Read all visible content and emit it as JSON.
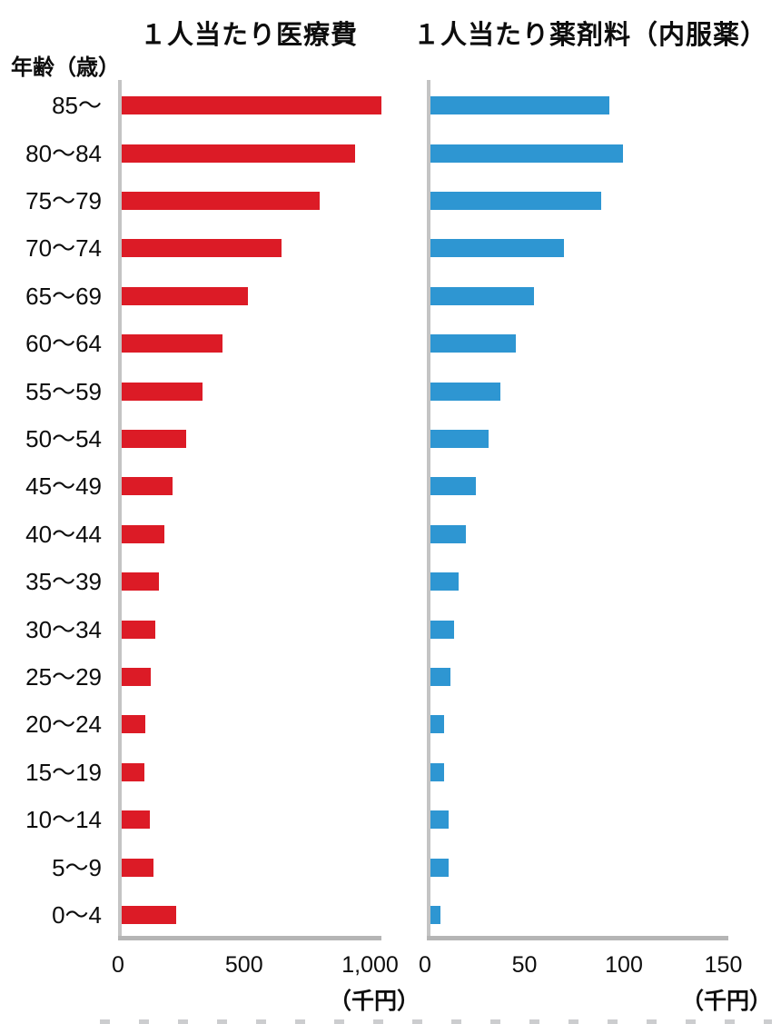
{
  "page": {
    "y_axis_unit_label": "年齢（歳）"
  },
  "chart_data": [
    {
      "type": "bar",
      "orientation": "horizontal",
      "title": "１人当たり医療費",
      "unit_label": "（千円）",
      "categories": [
        "85〜",
        "80〜84",
        "75〜79",
        "70〜74",
        "65〜69",
        "60〜64",
        "55〜59",
        "50〜54",
        "45〜49",
        "40〜44",
        "35〜39",
        "30〜34",
        "25〜29",
        "20〜24",
        "15〜19",
        "10〜14",
        "5〜9",
        "0〜4"
      ],
      "values": [
        1030,
        925,
        785,
        635,
        500,
        400,
        320,
        255,
        200,
        170,
        148,
        133,
        115,
        92,
        90,
        112,
        125,
        215
      ],
      "xlim": [
        0,
        1040
      ],
      "xticks": [
        {
          "value": 0,
          "label": "0"
        },
        {
          "value": 500,
          "label": "500"
        },
        {
          "value": 1000,
          "label": "1,000"
        }
      ],
      "bar_color": "#dc1b26",
      "axis_color": "#c0c0c0",
      "grid": false,
      "legend": "none"
    },
    {
      "type": "bar",
      "orientation": "horizontal",
      "title": "１人当たり薬剤料（内服薬）",
      "unit_label": "（千円）",
      "categories": [
        "85〜",
        "80〜84",
        "75〜79",
        "70〜74",
        "65〜69",
        "60〜64",
        "55〜59",
        "50〜54",
        "45〜49",
        "40〜44",
        "35〜39",
        "30〜34",
        "25〜29",
        "20〜24",
        "15〜19",
        "10〜14",
        "5〜9",
        "0〜4"
      ],
      "values": [
        90,
        97,
        86,
        67,
        52,
        43,
        35,
        29,
        23,
        18,
        14,
        12,
        10,
        7,
        7,
        9,
        9,
        5
      ],
      "xlim": [
        0,
        150
      ],
      "xticks": [
        {
          "value": 0,
          "label": "0"
        },
        {
          "value": 50,
          "label": "50"
        },
        {
          "value": 100,
          "label": "100"
        },
        {
          "value": 150,
          "label": "150"
        }
      ],
      "bar_color": "#2e96d2",
      "axis_color": "#c0c0c0",
      "grid": false,
      "legend": "none"
    }
  ]
}
